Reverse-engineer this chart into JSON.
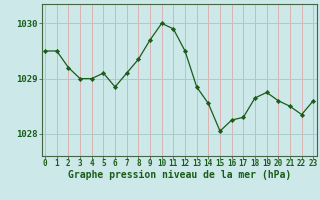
{
  "x": [
    0,
    1,
    2,
    3,
    4,
    5,
    6,
    7,
    8,
    9,
    10,
    11,
    12,
    13,
    14,
    15,
    16,
    17,
    18,
    19,
    20,
    21,
    22,
    23
  ],
  "y": [
    1029.5,
    1029.5,
    1029.2,
    1029.0,
    1029.0,
    1029.1,
    1028.85,
    1029.1,
    1029.35,
    1029.7,
    1030.0,
    1029.9,
    1029.5,
    1028.85,
    1028.55,
    1028.05,
    1028.25,
    1028.3,
    1028.65,
    1028.75,
    1028.6,
    1028.5,
    1028.35,
    1028.6
  ],
  "ylim": [
    1027.6,
    1030.35
  ],
  "yticks": [
    1028,
    1029,
    1030
  ],
  "xticks": [
    0,
    1,
    2,
    3,
    4,
    5,
    6,
    7,
    8,
    9,
    10,
    11,
    12,
    13,
    14,
    15,
    16,
    17,
    18,
    19,
    20,
    21,
    22,
    23
  ],
  "xlabel": "Graphe pression niveau de la mer (hPa)",
  "line_color": "#1a5c1a",
  "marker_color": "#1a5c1a",
  "bg_color": "#cce8e8",
  "hgrid_color": "#aacccc",
  "vgrid_color": "#dda0a0",
  "axis_label_color": "#1a5c1a",
  "tick_label_color": "#1a5c1a",
  "xlabel_fontsize": 7.0,
  "tick_fontsize": 5.5,
  "ytick_fontsize": 6.5
}
